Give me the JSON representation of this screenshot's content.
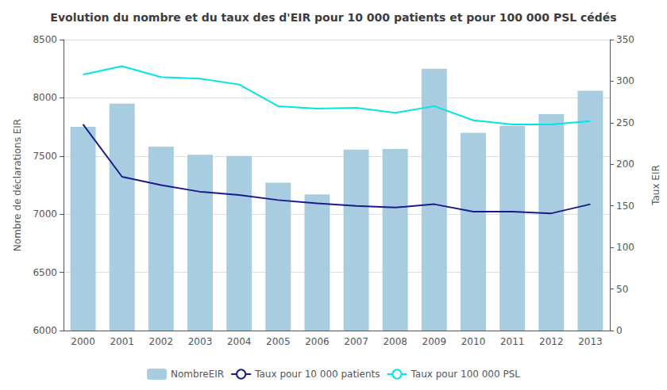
{
  "chart_data": {
    "type": "bar",
    "title": "Evolution du nombre et du taux des d'EIR pour 10 000 patients et pour 100 000 PSL cédés",
    "categories": [
      "2000",
      "2001",
      "2002",
      "2003",
      "2004",
      "2005",
      "2006",
      "2007",
      "2008",
      "2009",
      "2010",
      "2011",
      "2012",
      "2013"
    ],
    "series": [
      {
        "name": "NombreEIR",
        "type": "bar",
        "color": "#a8cce0",
        "values": [
          7750,
          7950,
          7580,
          7510,
          7500,
          7270,
          7170,
          7555,
          7560,
          8250,
          7700,
          7760,
          7860,
          8060
        ]
      },
      {
        "name": "Taux pour 10 000 patients",
        "type": "line",
        "axis": "y2",
        "color": "#1a1a8c",
        "values": [
          248,
          185,
          175,
          167,
          163,
          157,
          153,
          150,
          148,
          152,
          143,
          143,
          141,
          152
        ]
      },
      {
        "name": "Taux pour 100 000 PSL",
        "type": "line",
        "axis": "y2",
        "color": "#00e5e5",
        "values": [
          308,
          318,
          305,
          303,
          296,
          270,
          267,
          268,
          262,
          270,
          253,
          248,
          248,
          252
        ]
      }
    ],
    "ylabel": "Nombre de déclarations EIR",
    "y2label": "Taux EIR",
    "ylim": [
      6000,
      8500
    ],
    "yticks": [
      6000,
      6500,
      7000,
      7500,
      8000,
      8500
    ],
    "y2lim": [
      0,
      350
    ],
    "y2ticks": [
      0,
      50,
      100,
      150,
      200,
      250,
      300,
      350
    ],
    "grid": true,
    "legend": "bottom"
  }
}
